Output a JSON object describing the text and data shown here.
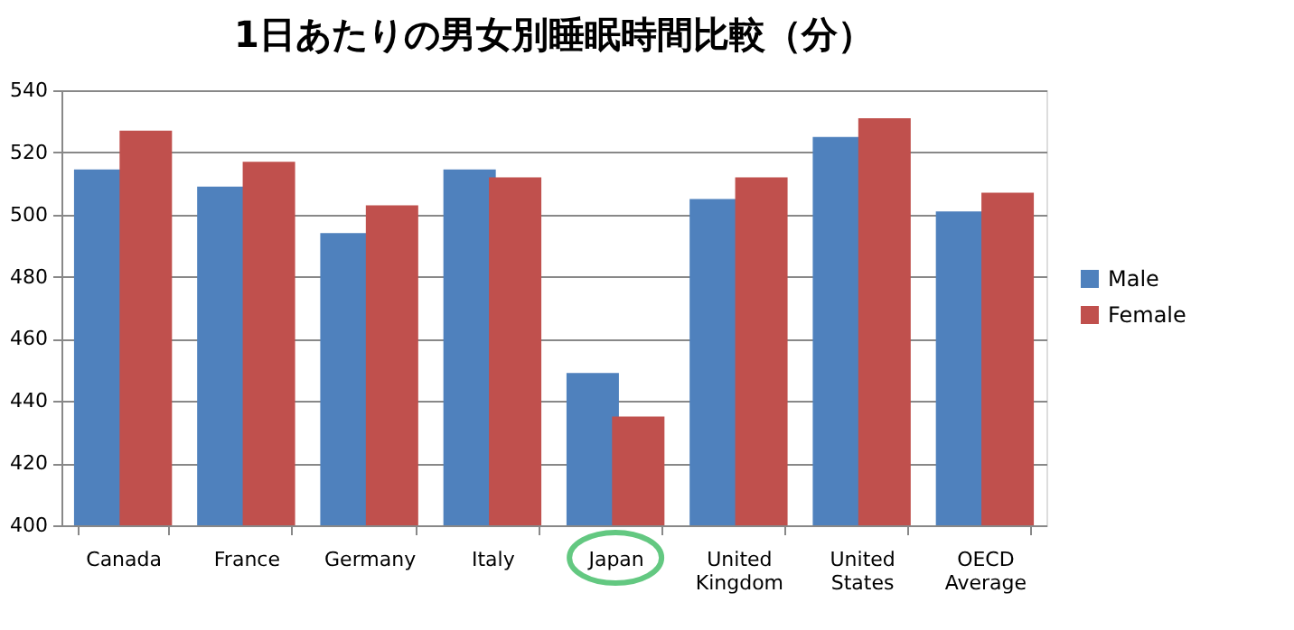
{
  "chart_data": {
    "type": "bar",
    "title": "1日あたりの男女別睡眠時間比較（分）",
    "categories": [
      "Canada",
      "France",
      "Germany",
      "Italy",
      "Japan",
      "United Kingdom",
      "United States",
      "OECD Average"
    ],
    "series": [
      {
        "name": "Male",
        "color": "#4f81bd",
        "values": [
          514.5,
          509,
          494,
          514.5,
          449,
          505,
          525,
          501
        ]
      },
      {
        "name": "Female",
        "color": "#c0504d",
        "values": [
          527,
          517,
          503,
          512,
          435,
          512,
          531,
          507
        ]
      }
    ],
    "ylim": [
      400,
      540
    ],
    "yticks": [
      400,
      420,
      440,
      460,
      480,
      500,
      520,
      540
    ],
    "grid": "y",
    "legend": "right"
  }
}
